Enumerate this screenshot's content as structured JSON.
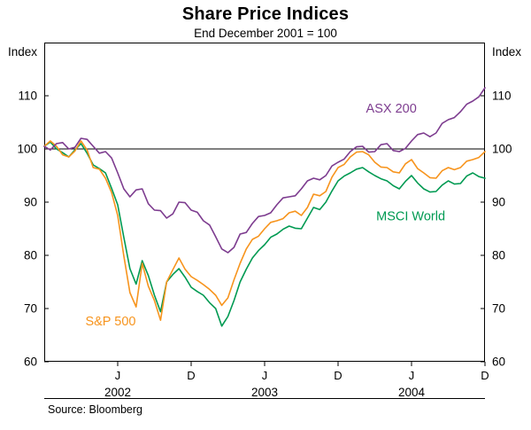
{
  "chart_data": {
    "type": "line",
    "title": "Share Price Indices",
    "subtitle": "End December 2001 = 100",
    "unit_label_left": "Index",
    "unit_label_right": "Index",
    "source": "Source: Bloomberg",
    "ylim": [
      60,
      120
    ],
    "yticks": [
      60,
      70,
      80,
      90,
      100,
      110
    ],
    "reference_line_y": 100,
    "x_span_years": 3,
    "x_ticks": [
      {
        "t": 0.5,
        "label": "J"
      },
      {
        "t": 1.0,
        "label": "D"
      },
      {
        "t": 1.5,
        "label": "J"
      },
      {
        "t": 2.0,
        "label": "D"
      },
      {
        "t": 2.5,
        "label": "J"
      },
      {
        "t": 3.0,
        "label": "D"
      }
    ],
    "year_labels": [
      {
        "t": 0.5,
        "label": "2002"
      },
      {
        "t": 1.5,
        "label": "2003"
      },
      {
        "t": 2.5,
        "label": "2004"
      }
    ],
    "series": [
      {
        "name": "ASX 200",
        "color": "#7d3c8f",
        "label": {
          "t": 2.19,
          "v": 106.8
        },
        "values": [
          100.5,
          99.8,
          101,
          101.2,
          100,
          100.3,
          102,
          101.8,
          100.5,
          99.2,
          99.5,
          98.3,
          95.5,
          92.5,
          91,
          92.3,
          92.5,
          89.7,
          88.5,
          88.4,
          87,
          87.8,
          90,
          89.9,
          88.5,
          88.1,
          86.5,
          85.7,
          83.5,
          81.2,
          80.5,
          81.5,
          84,
          84.3,
          86,
          87.3,
          87.5,
          88,
          89.5,
          90.8,
          91,
          91.2,
          92.5,
          94,
          94.5,
          94.2,
          95,
          96.8,
          97.5,
          98.1,
          99.5,
          100.4,
          100.5,
          99.4,
          99.5,
          100.8,
          101,
          99.7,
          99.5,
          100.1,
          101.5,
          102.7,
          103,
          102.3,
          103,
          104.8,
          105.5,
          105.9,
          107,
          108.4,
          109,
          109.8,
          111.5
        ]
      },
      {
        "name": "S&P 500",
        "color": "#f7941d",
        "label": {
          "t": 0.28,
          "v": 66.8
        },
        "values": [
          100.5,
          101.5,
          100.5,
          98.9,
          98.5,
          99.6,
          101.5,
          99.8,
          96.5,
          96.2,
          94.5,
          91.8,
          87.5,
          79.9,
          73,
          70.3,
          78.5,
          74.2,
          71.5,
          67.8,
          75,
          77.3,
          79.5,
          77.4,
          76,
          75.3,
          74.5,
          73.6,
          72.5,
          70.6,
          72,
          75.4,
          78.5,
          81.2,
          83,
          83.6,
          85,
          86.2,
          86.5,
          86.9,
          88,
          88.3,
          87.5,
          89,
          91.5,
          91.2,
          92,
          94.7,
          96.5,
          97.1,
          98.5,
          99.4,
          99.5,
          98.9,
          97.5,
          96.6,
          96.5,
          95.7,
          95.5,
          97.2,
          98,
          96.3,
          95.5,
          94.6,
          94.5,
          95.9,
          96.5,
          96.1,
          96.5,
          97.7,
          98,
          98.4,
          99.5
        ]
      },
      {
        "name": "MSCI World",
        "color": "#009a52",
        "label": {
          "t": 2.26,
          "v": 86.6
        },
        "values": [
          100.5,
          101.3,
          100,
          99.3,
          98.5,
          99.8,
          101,
          99.2,
          97,
          96.3,
          95.5,
          92.6,
          89.5,
          83.4,
          77.5,
          74.6,
          79,
          76.2,
          72.5,
          69.4,
          75,
          76.4,
          77.5,
          75.9,
          74,
          73.2,
          72.5,
          71.1,
          70,
          66.7,
          68.5,
          71.5,
          75,
          77.4,
          79.5,
          80.9,
          82,
          83.4,
          84,
          84.9,
          85.5,
          85.1,
          85,
          87,
          89,
          88.6,
          90,
          92.1,
          94,
          94.9,
          95.5,
          96.2,
          96.5,
          95.7,
          95,
          94.4,
          94,
          93.1,
          92.5,
          93.9,
          95,
          93.6,
          92.5,
          91.9,
          92,
          93.2,
          94,
          93.4,
          93.5,
          94.9,
          95.5,
          94.8,
          94.5
        ]
      }
    ]
  }
}
